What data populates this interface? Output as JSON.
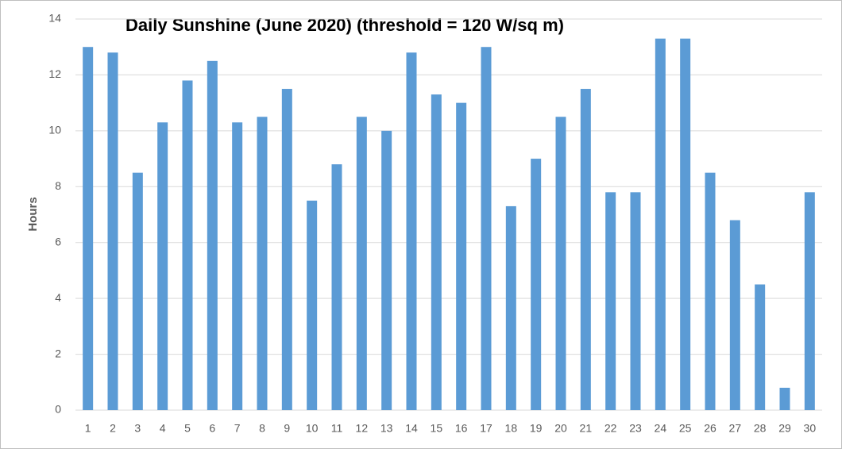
{
  "chart_data": {
    "type": "bar",
    "title": "Daily Sunshine (June 2020) (threshold = 120 W/sq m)",
    "y_label": "Hours",
    "categories": [
      "1",
      "2",
      "3",
      "4",
      "5",
      "6",
      "7",
      "8",
      "9",
      "10",
      "11",
      "12",
      "13",
      "14",
      "15",
      "16",
      "17",
      "18",
      "19",
      "20",
      "21",
      "22",
      "23",
      "24",
      "25",
      "26",
      "27",
      "28",
      "29",
      "30"
    ],
    "values": [
      13.0,
      12.8,
      8.5,
      10.3,
      11.8,
      12.5,
      10.3,
      10.5,
      11.5,
      7.5,
      8.8,
      10.5,
      10.0,
      12.8,
      11.3,
      11.0,
      13.0,
      7.3,
      9.0,
      10.5,
      11.5,
      7.8,
      7.8,
      13.3,
      13.3,
      8.5,
      6.8,
      4.5,
      0.8,
      7.8
    ],
    "color": "#5b9bd5",
    "ylim": [
      0,
      14
    ],
    "yticks": [
      0,
      2,
      4,
      6,
      8,
      10,
      12,
      14
    ],
    "grid": true
  }
}
